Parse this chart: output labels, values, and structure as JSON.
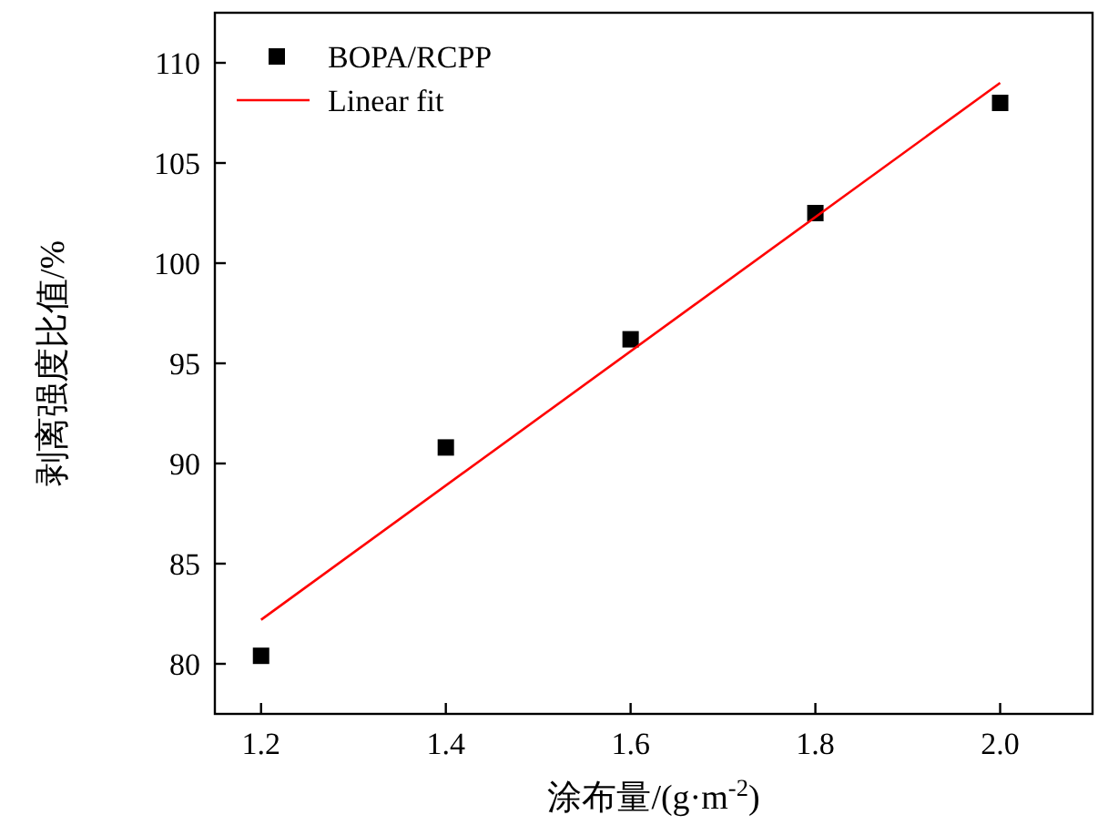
{
  "chart_data": {
    "type": "scatter",
    "xlabel": "涂布量/(g·m$^{-2}$)",
    "ylabel": "剥离强度比值/%",
    "xlim": [
      1.15,
      2.1
    ],
    "ylim": [
      77.5,
      112.5
    ],
    "xticks": [
      1.2,
      1.4,
      1.6,
      1.8,
      {
        "value": 2,
        "label": "2.0"
      }
    ],
    "yticks": [
      80,
      85,
      90,
      95,
      100,
      105,
      110
    ],
    "series": [
      {
        "name": "BOPA/RCPP",
        "marker": "square",
        "color": "#000000",
        "x": [
          1.2,
          1.4,
          1.6,
          1.8,
          2.0
        ],
        "values": [
          80.4,
          90.8,
          96.2,
          102.5,
          108.0
        ]
      },
      {
        "name": "Linear fit",
        "type": "line",
        "marker": "none",
        "color": "#ff0000",
        "x": [
          1.2,
          2.0
        ],
        "values": [
          82.2,
          109.0
        ]
      }
    ],
    "legend": "top left",
    "grid": false
  }
}
